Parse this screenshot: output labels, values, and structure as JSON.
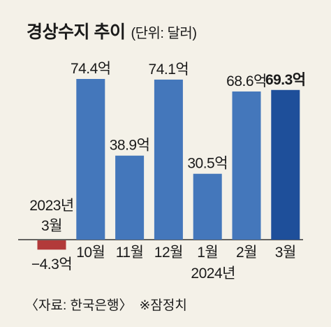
{
  "header": {
    "title": "경상수지 추이",
    "unit": "(단위: 달러)"
  },
  "footer": {
    "source": "〈자료: 한국은행〉",
    "note": "※잠정치"
  },
  "colors": {
    "background": "#f4f1e8",
    "bar": "#4477bb",
    "bar_highlight": "#1e4f9a",
    "bar_negative": "#b23a3a",
    "axis": "#333333"
  },
  "chart_data": {
    "type": "bar",
    "categories": [
      "2023년 3월",
      "10월",
      "11월",
      "12월",
      "1월",
      "2월",
      "3월"
    ],
    "category_lines": [
      [
        "2023년",
        "3월"
      ],
      [
        "10월"
      ],
      [
        "11월"
      ],
      [
        "12월"
      ],
      [
        "1월"
      ],
      [
        "2월"
      ],
      [
        "3월"
      ]
    ],
    "year_labels": [
      {
        "text": "2024년",
        "under_category": 4
      }
    ],
    "values": [
      -4.3,
      74.4,
      38.9,
      74.1,
      30.5,
      68.6,
      69.3
    ],
    "value_labels": [
      "−4.3억",
      "74.4억",
      "38.9억",
      "74.1억",
      "30.5억",
      "68.6억",
      "69.3억"
    ],
    "highlight_index": 6,
    "title": "경상수지 추이",
    "xlabel": "",
    "ylabel": "",
    "ylim": [
      -4.3,
      74.4
    ],
    "grid": false
  }
}
